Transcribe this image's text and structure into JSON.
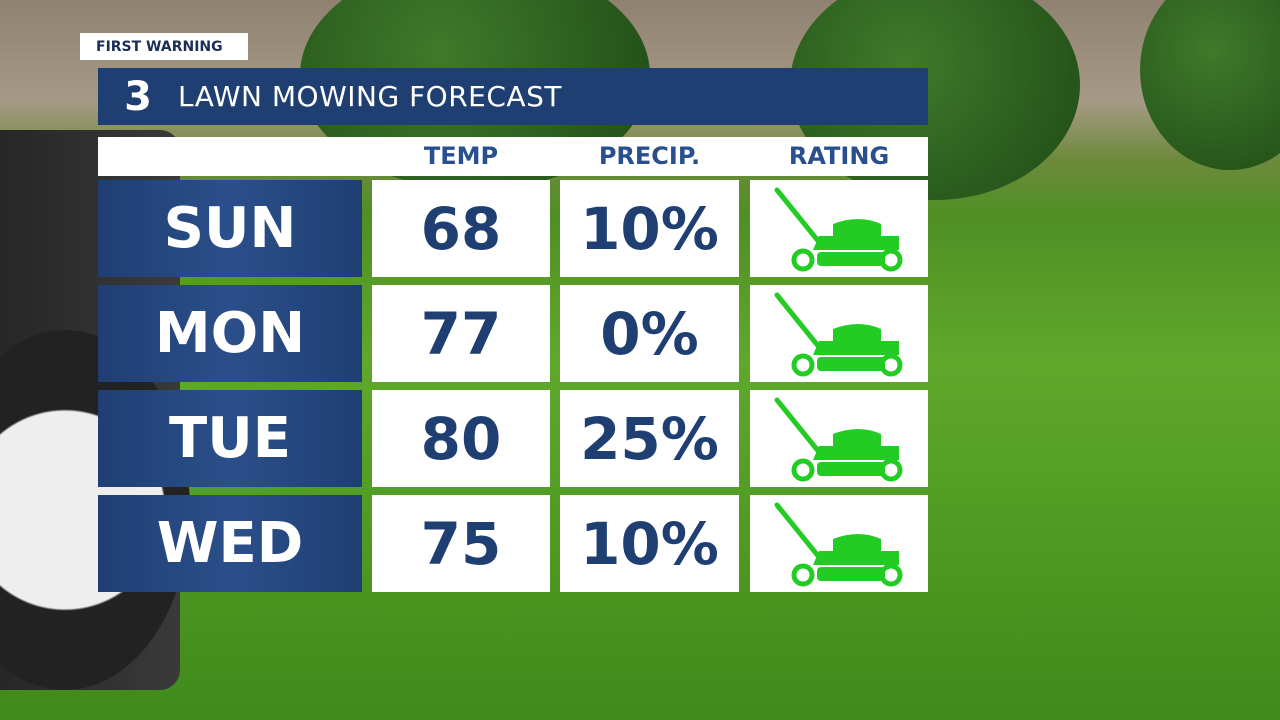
{
  "header": {
    "badge": "FIRST WARNING",
    "logo": "3",
    "title": "LAWN MOWING FORECAST"
  },
  "table": {
    "columns": [
      "TEMP",
      "PRECIP.",
      "RATING"
    ],
    "rows": [
      [
        "SUN",
        "68",
        "10%"
      ],
      [
        "MON",
        "77",
        "0%"
      ],
      [
        "TUE",
        "80",
        "25%"
      ],
      [
        "WED",
        "75",
        "10%"
      ]
    ]
  }
}
